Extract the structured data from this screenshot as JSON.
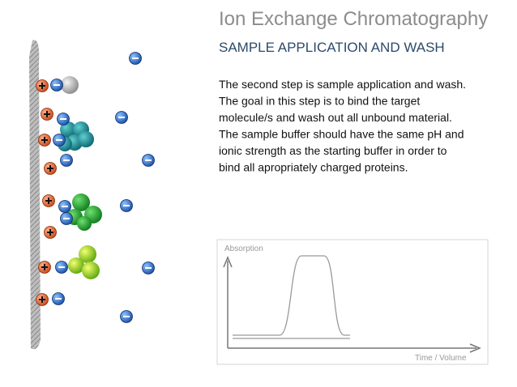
{
  "header": {
    "title": "Ion Exchange Chromatography",
    "subtitle": "SAMPLE APPLICATION AND WASH"
  },
  "description": {
    "lines": [
      "The second step is sample application and wash.",
      "The goal in this step is to bind the target",
      "molecule/s and wash out all unbound material.",
      "The sample buffer should have the same pH and",
      "ionic strength as the starting buffer in order to",
      "bind all apropriately charged proteins."
    ]
  },
  "graph": {
    "y_label": "Absorption",
    "x_label": "Time / Volume"
  }
}
